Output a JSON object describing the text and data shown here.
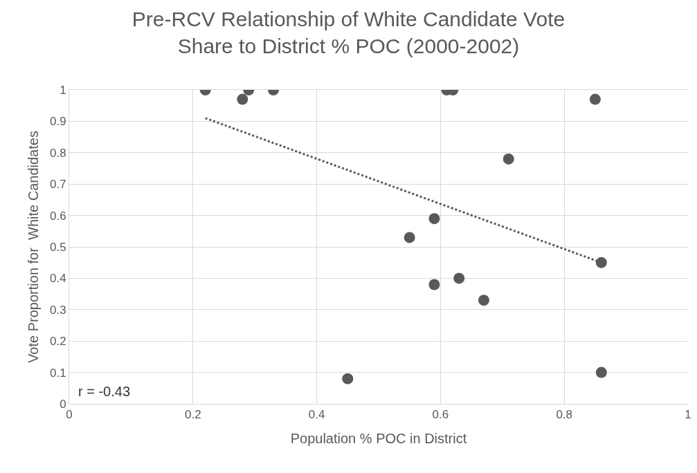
{
  "chart_data": {
    "type": "scatter",
    "title": "Pre-RCV Relationship of White Candidate Vote Share to District % POC (2000-2002)",
    "xlabel": "Population % POC in District",
    "ylabel": "Vote Proportion for  White Candidates",
    "series": [
      {
        "color": "#595959",
        "marker": "circle",
        "x": [
          0.22,
          0.28,
          0.29,
          0.33,
          0.61,
          0.62,
          0.85,
          0.71,
          0.59,
          0.55,
          0.86,
          0.63,
          0.59,
          0.67,
          0.45,
          0.86
        ],
        "values": [
          1,
          0.97,
          1,
          1,
          1,
          1,
          0.97,
          0.78,
          0.59,
          0.53,
          0.45,
          0.4,
          0.38,
          0.33,
          0.08,
          0.1
        ]
      },
      {
        "type": "line",
        "color": "#595959",
        "line_style": "dotted",
        "marker": "none",
        "x": [
          0.22,
          0.86
        ],
        "values": [
          0.91,
          0.45
        ]
      }
    ],
    "xlim": [
      0,
      1
    ],
    "xticks": [
      0,
      0.2,
      0.4,
      0.6,
      0.8,
      1
    ],
    "ylim": [
      0,
      1
    ],
    "yticks": [
      0,
      0.1,
      0.2,
      0.3,
      0.4,
      0.5,
      0.6,
      0.7,
      0.8,
      0.9,
      1
    ],
    "grid": true,
    "annotations": [
      "r = -0.43"
    ]
  }
}
